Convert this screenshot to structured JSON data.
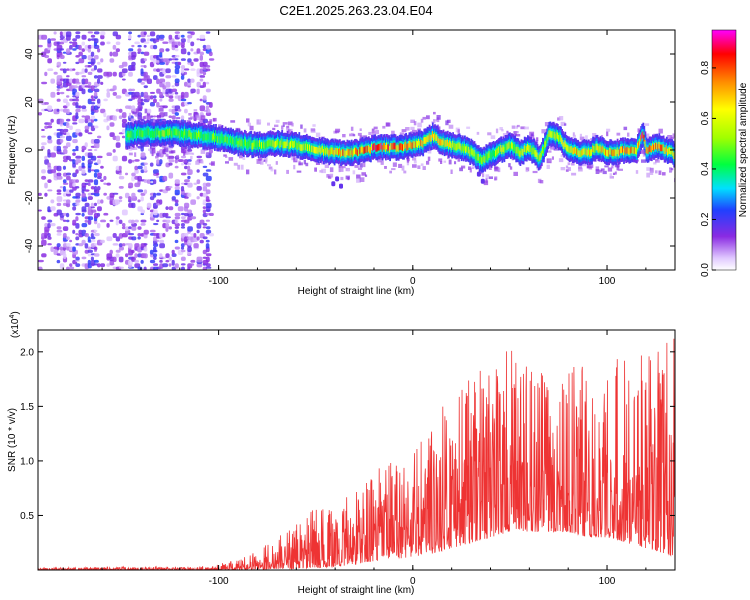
{
  "title": "C2E1.2025.263.23.04.E04",
  "chart_data": [
    {
      "type": "heatmap",
      "panel": "spectrogram",
      "xlabel": "Height of straight line (km)",
      "ylabel": "Frequency (Hz)",
      "xlim": [
        -193,
        135
      ],
      "ylim": [
        -50,
        50
      ],
      "x_ticks": [
        -100,
        0,
        100
      ],
      "x_tick_labels": [
        "-100",
        "0",
        "100"
      ],
      "y_ticks": [
        -40,
        -20,
        0,
        20,
        40
      ],
      "y_tick_labels": [
        "-40",
        "-20",
        "0",
        "20",
        "40"
      ],
      "colorbar": {
        "label": "Normalized spectral amplitude",
        "range": [
          0,
          0.95
        ],
        "ticks": [
          0.0,
          0.2,
          0.4,
          0.6,
          0.8
        ],
        "tick_labels": [
          "0.0",
          "0.2",
          "0.4",
          "0.6",
          "0.8"
        ]
      },
      "noise_region_x": [
        -193,
        -105
      ],
      "signal_start_x": -148,
      "ridge": {
        "x": [
          -148,
          -140,
          -130,
          -120,
          -110,
          -100,
          -90,
          -80,
          -70,
          -60,
          -50,
          -40,
          -30,
          -20,
          -10,
          0,
          5,
          10,
          15,
          20,
          25,
          30,
          35,
          40,
          45,
          50,
          55,
          60,
          65,
          70,
          75,
          80,
          85,
          90,
          95,
          100,
          105,
          110,
          115,
          118,
          120,
          125,
          130,
          135
        ],
        "frequency": [
          6,
          7,
          7,
          7,
          6,
          5,
          3,
          2,
          3,
          2,
          0,
          -1,
          -1,
          1,
          1,
          2,
          3,
          6,
          3,
          2,
          1,
          -1,
          -4,
          -2,
          0,
          2,
          -1,
          1,
          -4,
          7,
          5,
          0,
          -1,
          -1,
          1,
          -1,
          -1,
          0,
          0,
          7,
          0,
          2,
          0,
          -2
        ],
        "amplitude": [
          0.45,
          0.5,
          0.55,
          0.5,
          0.55,
          0.5,
          0.5,
          0.55,
          0.6,
          0.6,
          0.65,
          0.75,
          0.8,
          0.9,
          0.85,
          0.8,
          0.75,
          0.7,
          0.7,
          0.65,
          0.65,
          0.6,
          0.55,
          0.55,
          0.6,
          0.6,
          0.65,
          0.65,
          0.6,
          0.6,
          0.65,
          0.7,
          0.75,
          0.7,
          0.7,
          0.75,
          0.8,
          0.8,
          0.75,
          0.9,
          0.8,
          0.9,
          0.75,
          0.7
        ]
      }
    },
    {
      "type": "line",
      "panel": "snr",
      "xlabel": "Height of straight line (km)",
      "ylabel": "SNR (10 * v/v)",
      "y_multiplier_label": "(x10",
      "y_multiplier_exponent": "4",
      "xlim": [
        -193,
        135
      ],
      "ylim": [
        0,
        22000
      ],
      "x_ticks": [
        -100,
        0,
        100
      ],
      "x_tick_labels": [
        "-100",
        "0",
        "100"
      ],
      "y_ticks": [
        5000,
        10000,
        15000,
        20000
      ],
      "y_tick_labels": [
        "0.5",
        "1.0",
        "1.5",
        "2.0"
      ],
      "color": "#ee3333",
      "envelope": {
        "x": [
          -193,
          -150,
          -110,
          -100,
          -90,
          -80,
          -70,
          -60,
          -50,
          -40,
          -30,
          -20,
          -10,
          0,
          10,
          20,
          30,
          40,
          50,
          60,
          70,
          80,
          90,
          100,
          110,
          120,
          130,
          135
        ],
        "low": [
          0,
          0,
          0,
          0,
          0,
          50,
          100,
          100,
          200,
          300,
          500,
          800,
          1000,
          1200,
          1500,
          2000,
          2500,
          3000,
          3500,
          3500,
          3500,
          3500,
          3000,
          3000,
          2500,
          2000,
          1500,
          1000
        ],
        "high": [
          200,
          300,
          300,
          600,
          900,
          1800,
          3200,
          4200,
          5800,
          5500,
          7800,
          9000,
          10500,
          11500,
          13500,
          16500,
          17500,
          19500,
          20500,
          18500,
          19000,
          19500,
          18500,
          20000,
          20500,
          19500,
          21000,
          21500
        ]
      }
    }
  ]
}
